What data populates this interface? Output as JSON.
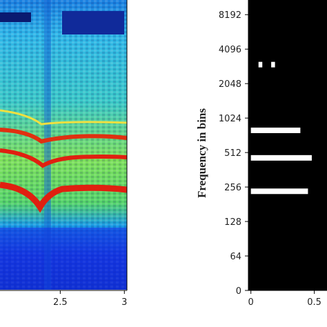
{
  "chart_data": [
    {
      "type": "spectrogram",
      "xlim": [
        2.03,
        3.02
      ],
      "xticks": [
        2.5,
        3
      ]
    },
    {
      "type": "mask",
      "y_label": "Frequency in bins",
      "yscale": "symlog2",
      "ylim": [
        0,
        11000
      ],
      "yticks": [
        0,
        64,
        128,
        256,
        512,
        1024,
        2048,
        4096,
        8192
      ],
      "xlim": [
        -0.02,
        0.6
      ],
      "xticks": [
        0,
        0.5
      ],
      "bands": [
        {
          "x": [
            0.0,
            0.39
          ],
          "y": 800
        },
        {
          "x": [
            0.0,
            0.48
          ],
          "y": 460
        },
        {
          "x": [
            0.0,
            0.45
          ],
          "y": 235
        },
        {
          "x": [
            0.06,
            0.09
          ],
          "y": 3000
        },
        {
          "x": [
            0.16,
            0.19
          ],
          "y": 3000
        }
      ],
      "color": "#ffffff",
      "background": "#000000"
    }
  ]
}
